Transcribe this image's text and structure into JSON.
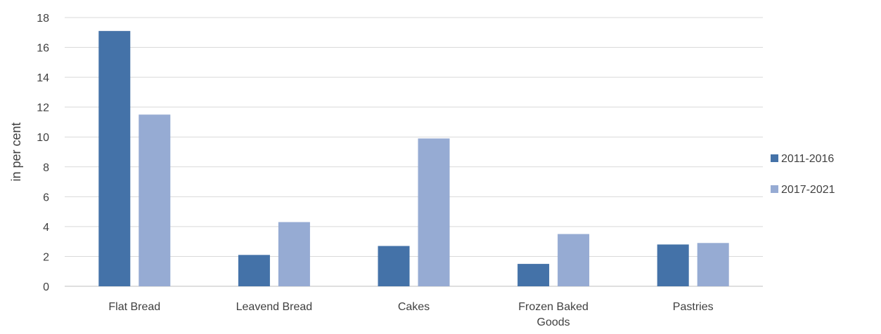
{
  "chart_data": {
    "type": "bar",
    "categories": [
      [
        "Flat Bread"
      ],
      [
        "Leavend Bread"
      ],
      [
        "Cakes"
      ],
      [
        "Frozen Baked",
        "Goods"
      ],
      [
        "Pastries"
      ]
    ],
    "series": [
      {
        "name": "2011-2016",
        "color": "#4472a8",
        "values": [
          17.1,
          2.1,
          2.7,
          1.5,
          2.8
        ]
      },
      {
        "name": "2017-2021",
        "color": "#96abd3",
        "values": [
          11.5,
          4.3,
          9.9,
          3.5,
          2.9
        ]
      }
    ],
    "ylabel": "in per cent",
    "ylim": [
      0,
      18
    ],
    "yticks": [
      0,
      2,
      4,
      6,
      8,
      10,
      12,
      14,
      16,
      18
    ],
    "grid": true,
    "legend": "right"
  }
}
